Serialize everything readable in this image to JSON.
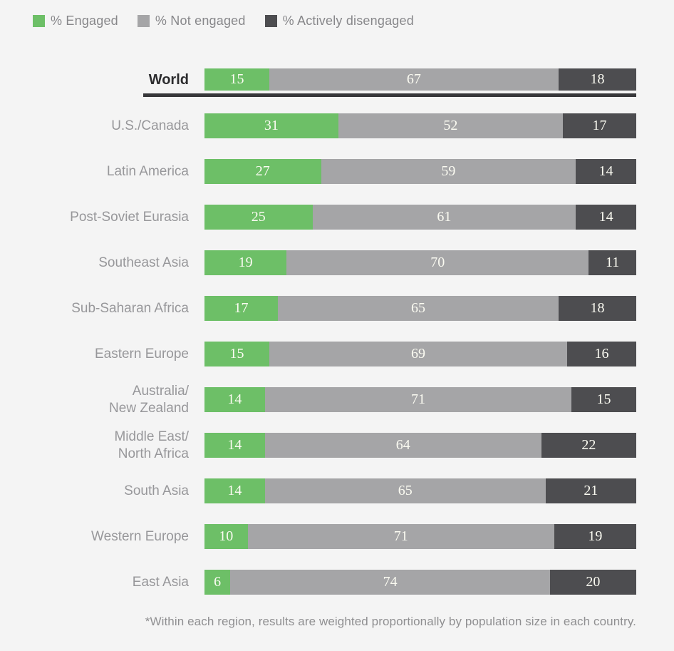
{
  "legend": {
    "items": [
      {
        "label": "% Engaged",
        "color": "#6dbf67"
      },
      {
        "label": "% Not engaged",
        "color": "#a5a5a7"
      },
      {
        "label": "% Actively disengaged",
        "color": "#4d4d50"
      }
    ]
  },
  "chart_data": {
    "type": "bar",
    "orientation": "horizontal",
    "stacked": true,
    "unit": "percent",
    "xlim": [
      0,
      100
    ],
    "value_labels": "inside-center",
    "emphasized_category": "World",
    "categories": [
      "World",
      "U.S./Canada",
      "Latin America",
      "Post-Soviet Eurasia",
      "Southeast Asia",
      "Sub-Saharan Africa",
      "Eastern Europe",
      "Australia/\nNew Zealand",
      "Middle East/\nNorth Africa",
      "South Asia",
      "Western Europe",
      "East Asia"
    ],
    "series": [
      {
        "name": "% Engaged",
        "color": "#6dbf67",
        "values": [
          15,
          31,
          27,
          25,
          19,
          17,
          15,
          14,
          14,
          14,
          10,
          6
        ]
      },
      {
        "name": "% Not engaged",
        "color": "#a5a5a7",
        "values": [
          67,
          52,
          59,
          61,
          70,
          65,
          69,
          71,
          64,
          65,
          71,
          74
        ]
      },
      {
        "name": "% Actively disengaged",
        "color": "#4d4d50",
        "values": [
          18,
          17,
          14,
          14,
          11,
          18,
          16,
          15,
          22,
          21,
          19,
          20
        ]
      }
    ]
  },
  "footnote": "*Within each region, results are weighted proportionally by population size in each country.",
  "colors": {
    "background": "#f4f4f4",
    "engaged": "#6dbf67",
    "not_engaged": "#a5a5a7",
    "actively_disengaged": "#4d4d50",
    "world_underline": "#37373a",
    "label_text": "#97979a",
    "emphasis_text": "#2c2c2e",
    "bar_value_text": "#fbfbf2"
  }
}
